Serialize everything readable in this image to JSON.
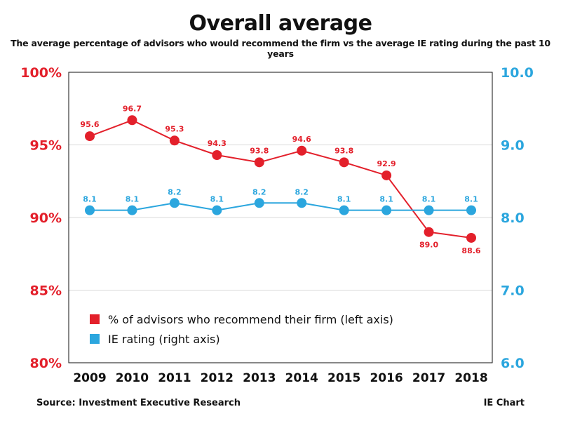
{
  "title": "Overall average",
  "subtitle": "The average percentage of advisors who would recommend the firm vs the average IE rating during the past 10 years",
  "source": "Source: Investment Executive Research",
  "credit": "IE Chart",
  "colors": {
    "recommend": "#e3202b",
    "rating": "#2ba6de",
    "grid": "#d9d9d9",
    "frame": "#111111"
  },
  "chart_data": {
    "type": "line",
    "x": [
      "2009",
      "2010",
      "2011",
      "2012",
      "2013",
      "2014",
      "2015",
      "2016",
      "2017",
      "2018"
    ],
    "series": [
      {
        "name": "% of advisors who recommend their firm (left axis)",
        "axis": "left",
        "values": [
          95.6,
          96.7,
          95.3,
          94.3,
          93.8,
          94.6,
          93.8,
          92.9,
          89.0,
          88.6
        ],
        "labels": [
          "95.6",
          "96.7",
          "95.3",
          "94.3",
          "93.8",
          "94.6",
          "93.8",
          "92.9",
          "89.0",
          "88.6"
        ]
      },
      {
        "name": "IE rating (right axis)",
        "axis": "right",
        "values": [
          8.1,
          8.1,
          8.2,
          8.1,
          8.2,
          8.2,
          8.1,
          8.1,
          8.1,
          8.1
        ],
        "labels": [
          "8.1",
          "8.1",
          "8.2",
          "8.1",
          "8.2",
          "8.2",
          "8.1",
          "8.1",
          "8.1",
          "8.1"
        ]
      }
    ],
    "left_axis": {
      "range": [
        80,
        100
      ],
      "ticks": [
        80,
        85,
        90,
        95,
        100
      ],
      "tick_labels": [
        "80%",
        "85%",
        "90%",
        "95%",
        "100%"
      ]
    },
    "right_axis": {
      "range": [
        6.0,
        10.0
      ],
      "ticks": [
        6.0,
        7.0,
        8.0,
        9.0,
        10.0
      ],
      "tick_labels": [
        "6.0",
        "7.0",
        "8.0",
        "9.0",
        "10.0"
      ]
    },
    "grid": true,
    "legend_position": "bottom-left"
  }
}
